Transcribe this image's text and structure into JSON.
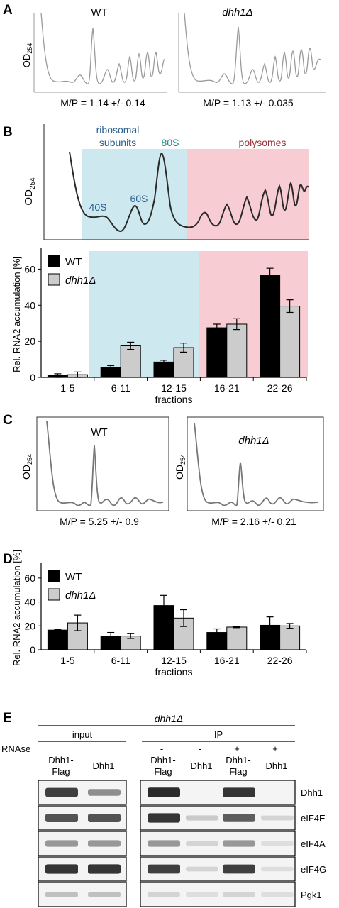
{
  "panel_a": {
    "letter": "A",
    "ylabel_main": "OD",
    "ylabel_sub": "254",
    "left_title": "WT",
    "right_title": "dhh1Δ",
    "left_ratio": "M/P = 1.14 +/- 0.14",
    "right_ratio": "M/P = 1.13 +/- 0.035"
  },
  "panel_b": {
    "letter": "B",
    "region_ribosomal_line1": "ribosomal",
    "region_ribosomal_line2": "subunits",
    "region_80s": "80S",
    "region_polysomes": "polysomes",
    "peak_40s": "40S",
    "peak_60s": "60S",
    "ylabel_main": "OD",
    "ylabel_sub": "254",
    "band_colors": {
      "subunits": "#cde8ef",
      "polysomes": "#f7ccd2"
    },
    "label_colors": {
      "subunits": "#2a5f8f",
      "s80": "#1a8a8a",
      "polysomes": "#9a2f35"
    }
  },
  "panel_c": {
    "letter": "C",
    "left_title": "WT",
    "right_title": "dhh1Δ",
    "ylabel_main": "OD",
    "ylabel_sub": "254",
    "left_ratio": "M/P = 5.25 +/- 0.9",
    "right_ratio": "M/P = 2.16 +/- 0.21"
  },
  "panel_d": {
    "letter": "D"
  },
  "chart_data": [
    {
      "type": "bar",
      "id": "panel-b-bars",
      "categories": [
        "1-5",
        "6-11",
        "12-15",
        "16-21",
        "22-26"
      ],
      "series": [
        {
          "name": "WT",
          "values": [
            1,
            5.5,
            8.5,
            27.5,
            56.5
          ],
          "errors": [
            1,
            1,
            1,
            2,
            4
          ],
          "color": "#000000"
        },
        {
          "name": "dhh1Δ",
          "values": [
            1.5,
            17.5,
            16.5,
            29.5,
            39.5
          ],
          "errors": [
            1.5,
            2,
            2.5,
            3,
            3.5
          ],
          "color": "#cccccc"
        }
      ],
      "xlabel": "fractions",
      "ylabel": "Rel. RNA2 accumulation [%]",
      "ylim": [
        0,
        70
      ],
      "yticks": [
        0,
        20,
        40,
        60
      ],
      "legend": "top-left"
    },
    {
      "type": "bar",
      "id": "panel-d-bars",
      "categories": [
        "1-5",
        "6-11",
        "12-15",
        "16-21",
        "22-26"
      ],
      "series": [
        {
          "name": "WT",
          "values": [
            16.5,
            11.5,
            37,
            14.5,
            20.5
          ],
          "errors": [
            0.5,
            3,
            8.5,
            3,
            7
          ],
          "color": "#000000"
        },
        {
          "name": "dhh1Δ",
          "values": [
            22.5,
            11.5,
            26.5,
            19,
            20
          ],
          "errors": [
            6.5,
            2,
            7,
            0.5,
            2
          ],
          "color": "#cccccc"
        }
      ],
      "xlabel": "fractions",
      "ylabel": "Rel. RNA2 accumulation [%]",
      "ylim": [
        0,
        70
      ],
      "yticks": [
        0,
        20,
        40,
        60
      ],
      "legend": "top-left"
    }
  ],
  "panel_e": {
    "letter": "E",
    "genotype": "dhh1Δ",
    "input_label": "input",
    "ip_label": "IP",
    "rnase_label": "RNAse",
    "rnase_signs": [
      "-",
      "-",
      "+",
      "+"
    ],
    "input_lanes": [
      {
        "line1": "Dhh1-",
        "line2": "Flag"
      },
      {
        "line1": "Dhh1",
        "line2": ""
      }
    ],
    "ip_lanes": [
      {
        "line1": "Dhh1-",
        "line2": "Flag"
      },
      {
        "line1": "Dhh1",
        "line2": ""
      },
      {
        "line1": "Dhh1-",
        "line2": "Flag"
      },
      {
        "line1": "Dhh1",
        "line2": ""
      }
    ],
    "blots": [
      "Dhh1",
      "eIF4E",
      "eIF4A",
      "eIF4G",
      "Pgk1"
    ],
    "band_intensity": {
      "input": [
        [
          0.85,
          0.45
        ],
        [
          0.75,
          0.75
        ],
        [
          0.4,
          0.4
        ],
        [
          0.9,
          0.9
        ],
        [
          0.2,
          0.2
        ]
      ],
      "ip": [
        [
          0.95,
          0.0,
          0.9,
          0.0
        ],
        [
          0.9,
          0.15,
          0.7,
          0.1
        ],
        [
          0.4,
          0.1,
          0.4,
          0.05
        ],
        [
          0.85,
          0.1,
          0.85,
          0.05
        ],
        [
          0.1,
          0.05,
          0.1,
          0.05
        ]
      ]
    }
  }
}
